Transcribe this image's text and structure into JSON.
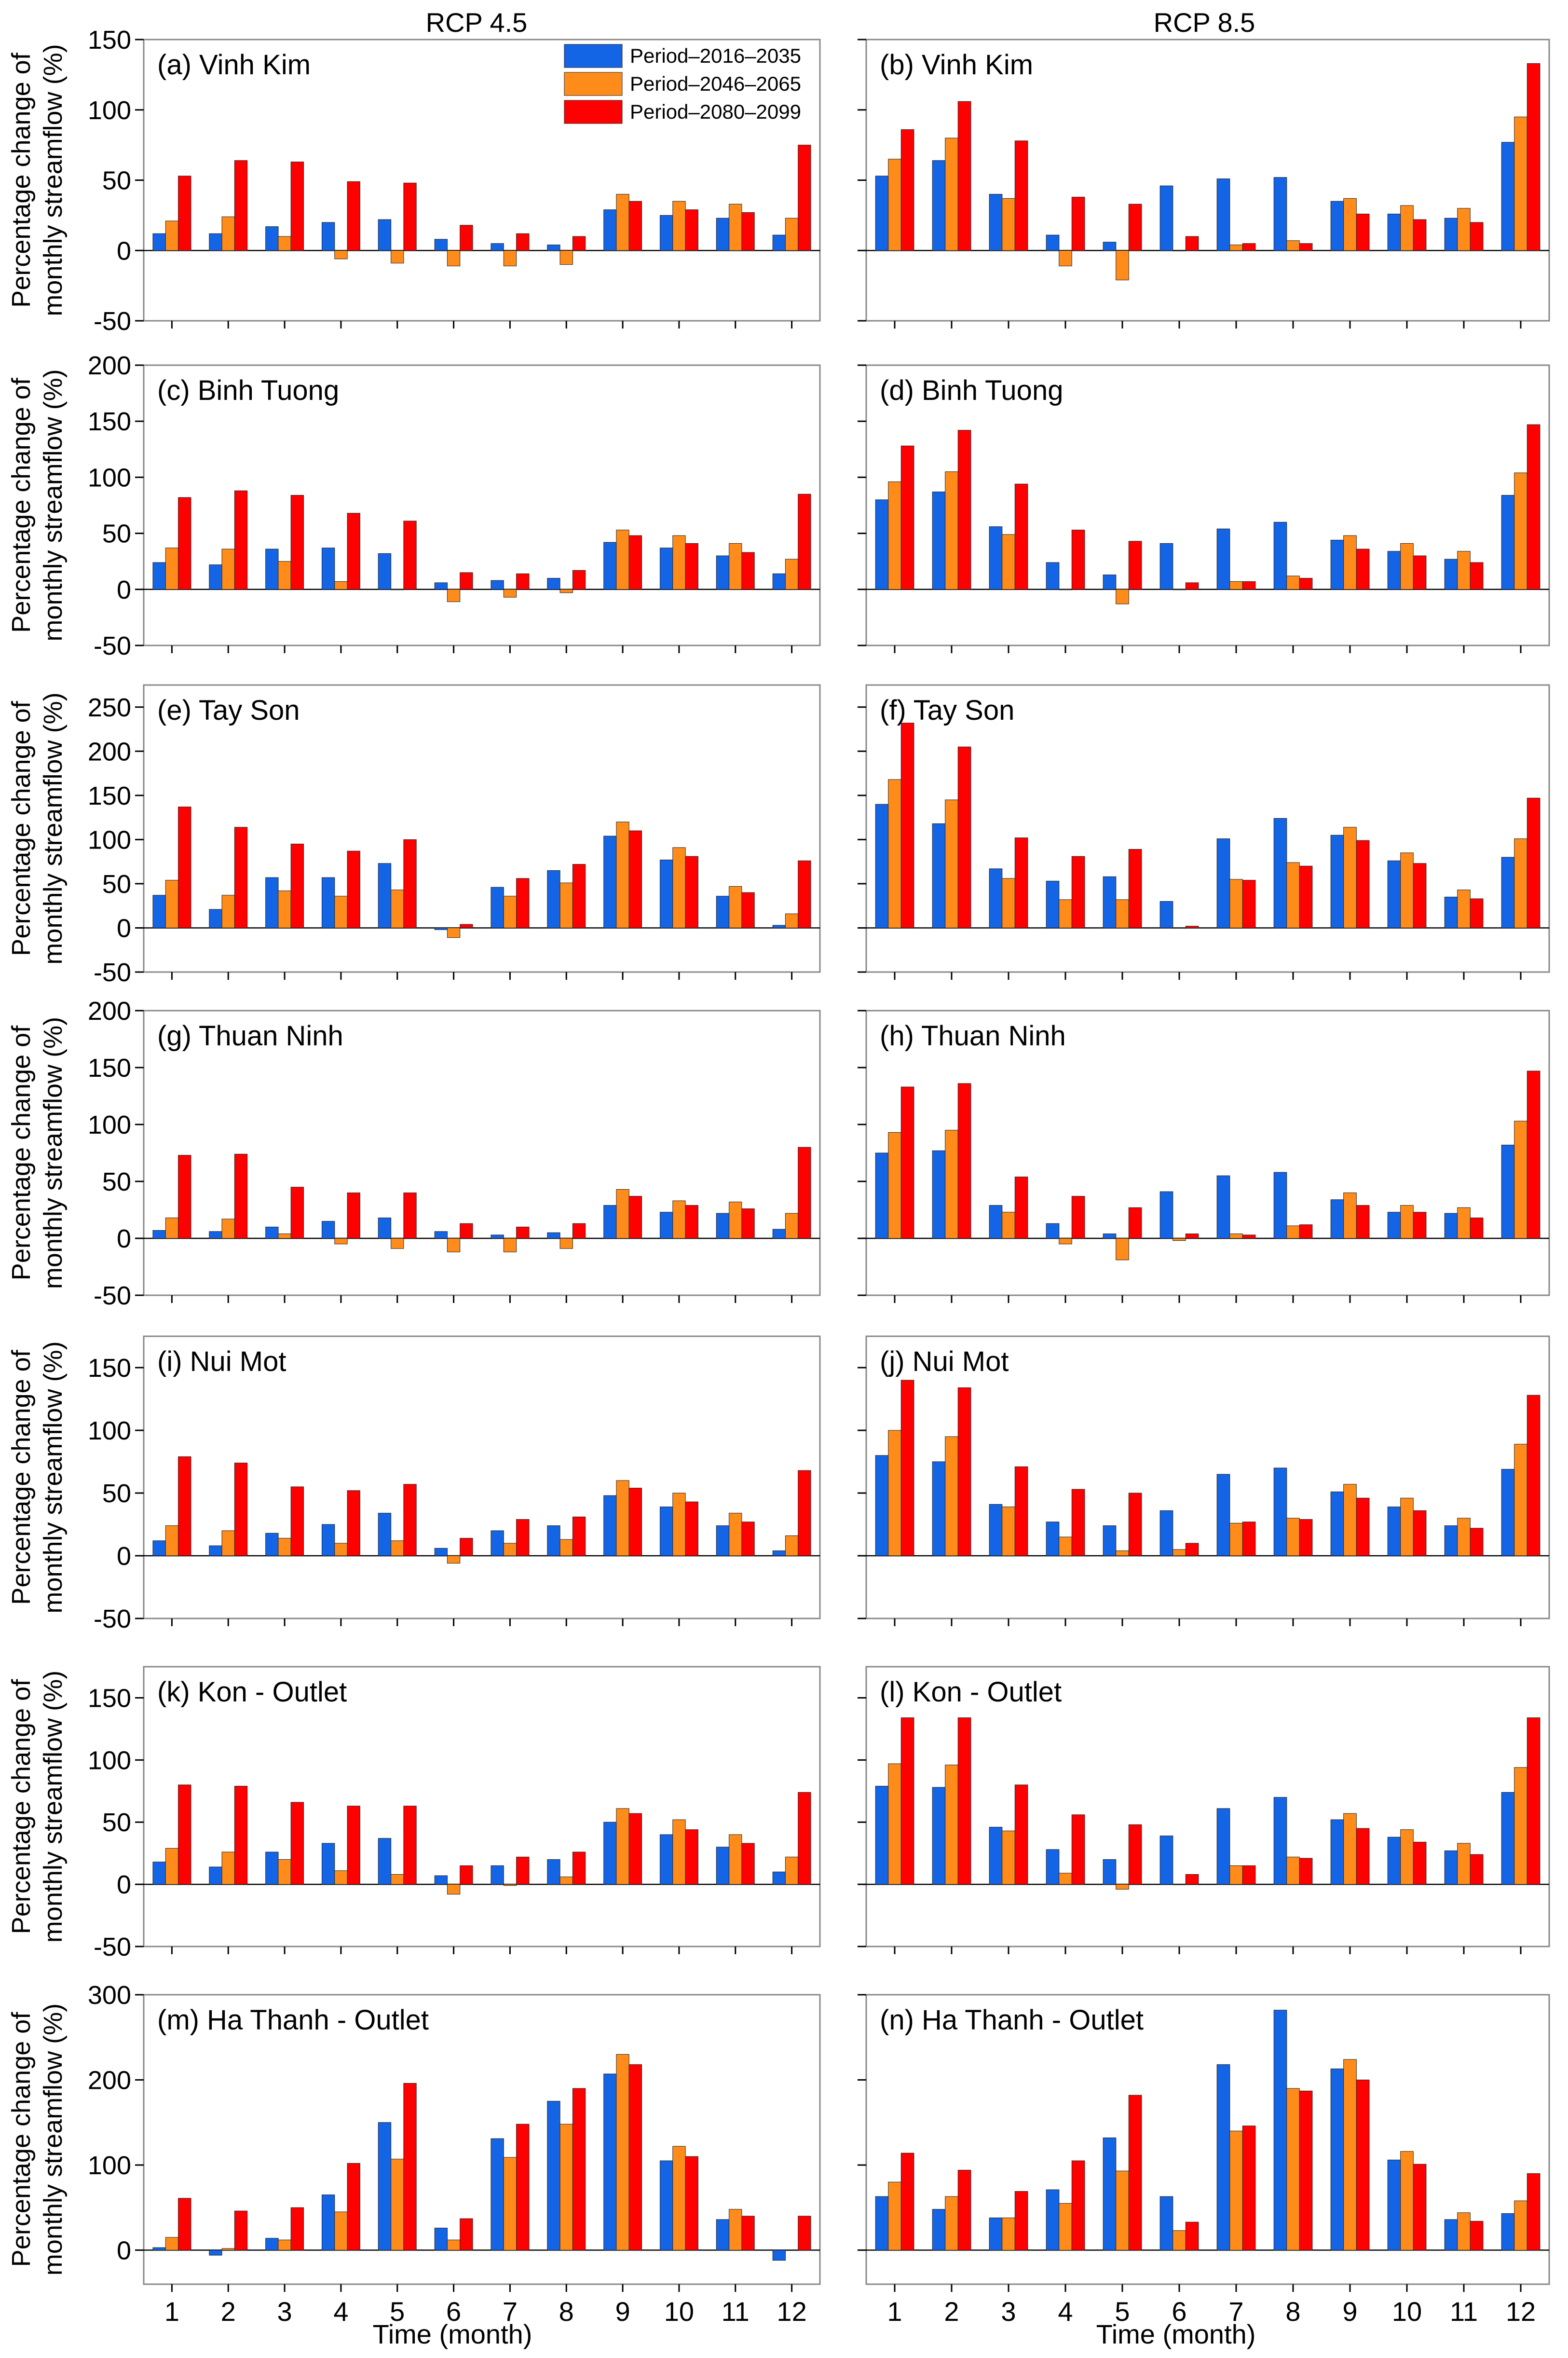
{
  "colors": {
    "p1": "#1464e6",
    "p2": "#ff8c1a",
    "p3": "#ff0000",
    "axis": "#000000",
    "frame": "#888888"
  },
  "column_titles": [
    "RCP 4.5",
    "RCP 8.5"
  ],
  "xlabel": "Time (month)",
  "ylabel_line1": "Percentage change of",
  "ylabel_line2": "monthly streamflow (%)",
  "legend": [
    "Period–2016–2035",
    "Period–2046–2065",
    "Period–2080–2099"
  ],
  "chart_data": [
    {
      "type": "bar",
      "title": "(a) Vinh Kim",
      "ylim": [
        -50,
        150
      ],
      "yticks": [
        -50,
        0,
        50,
        100,
        150
      ],
      "categories": [
        "1",
        "2",
        "3",
        "4",
        "5",
        "6",
        "7",
        "8",
        "9",
        "10",
        "11",
        "12"
      ],
      "series": [
        {
          "name": "Period–2016–2035",
          "values": [
            12,
            12,
            17,
            20,
            22,
            8,
            5,
            4,
            29,
            25,
            23,
            11
          ]
        },
        {
          "name": "Period–2046–2065",
          "values": [
            21,
            24,
            10,
            -6,
            -9,
            -11,
            -11,
            -10,
            40,
            35,
            33,
            23
          ]
        },
        {
          "name": "Period–2080–2099",
          "values": [
            53,
            64,
            63,
            49,
            48,
            18,
            12,
            10,
            35,
            29,
            27,
            75
          ]
        }
      ]
    },
    {
      "type": "bar",
      "title": "(b) Vinh Kim",
      "ylim": [
        -50,
        150
      ],
      "yticks": [
        -50,
        0,
        50,
        100,
        150
      ],
      "categories": [
        "1",
        "2",
        "3",
        "4",
        "5",
        "6",
        "7",
        "8",
        "9",
        "10",
        "11",
        "12"
      ],
      "series": [
        {
          "name": "Period–2016–2035",
          "values": [
            53,
            64,
            40,
            11,
            6,
            46,
            51,
            52,
            35,
            26,
            23,
            77
          ]
        },
        {
          "name": "Period–2046–2065",
          "values": [
            65,
            80,
            37,
            -11,
            -21,
            0,
            4,
            7,
            37,
            32,
            30,
            95
          ]
        },
        {
          "name": "Period–2080–2099",
          "values": [
            86,
            106,
            78,
            38,
            33,
            10,
            5,
            5,
            26,
            22,
            20,
            133
          ]
        }
      ]
    },
    {
      "type": "bar",
      "title": "(c) Binh Tuong",
      "ylim": [
        -50,
        200
      ],
      "yticks": [
        -50,
        0,
        50,
        100,
        150,
        200
      ],
      "categories": [
        "1",
        "2",
        "3",
        "4",
        "5",
        "6",
        "7",
        "8",
        "9",
        "10",
        "11",
        "12"
      ],
      "series": [
        {
          "name": "Period–2016–2035",
          "values": [
            24,
            22,
            36,
            37,
            32,
            6,
            8,
            10,
            42,
            37,
            30,
            14
          ]
        },
        {
          "name": "Period–2046–2065",
          "values": [
            37,
            36,
            25,
            7,
            0,
            -11,
            -7,
            -3,
            53,
            48,
            41,
            27
          ]
        },
        {
          "name": "Period–2080–2099",
          "values": [
            82,
            88,
            84,
            68,
            61,
            15,
            14,
            17,
            48,
            41,
            33,
            85
          ]
        }
      ]
    },
    {
      "type": "bar",
      "title": "(d) Binh Tuong",
      "ylim": [
        -50,
        200
      ],
      "yticks": [
        -50,
        0,
        50,
        100,
        150,
        200
      ],
      "categories": [
        "1",
        "2",
        "3",
        "4",
        "5",
        "6",
        "7",
        "8",
        "9",
        "10",
        "11",
        "12"
      ],
      "series": [
        {
          "name": "Period–2016–2035",
          "values": [
            80,
            87,
            56,
            24,
            13,
            41,
            54,
            60,
            44,
            34,
            27,
            84
          ]
        },
        {
          "name": "Period–2046–2065",
          "values": [
            96,
            105,
            49,
            0,
            -13,
            0,
            7,
            12,
            48,
            41,
            34,
            104
          ]
        },
        {
          "name": "Period–2080–2099",
          "values": [
            128,
            142,
            94,
            53,
            43,
            6,
            7,
            10,
            36,
            30,
            24,
            147
          ]
        }
      ]
    },
    {
      "type": "bar",
      "title": "(e) Tay Son",
      "ylim": [
        -50,
        275
      ],
      "yticks": [
        -50,
        0,
        50,
        100,
        150,
        200,
        250
      ],
      "categories": [
        "1",
        "2",
        "3",
        "4",
        "5",
        "6",
        "7",
        "8",
        "9",
        "10",
        "11",
        "12"
      ],
      "series": [
        {
          "name": "Period–2016–2035",
          "values": [
            37,
            21,
            57,
            57,
            73,
            -2,
            46,
            65,
            104,
            77,
            36,
            3
          ]
        },
        {
          "name": "Period–2046–2065",
          "values": [
            54,
            37,
            42,
            36,
            43,
            -11,
            36,
            51,
            120,
            91,
            47,
            16
          ]
        },
        {
          "name": "Period–2080–2099",
          "values": [
            137,
            114,
            95,
            87,
            100,
            4,
            56,
            72,
            110,
            81,
            40,
            76
          ]
        }
      ]
    },
    {
      "type": "bar",
      "title": "(f) Tay Son",
      "ylim": [
        -50,
        275
      ],
      "yticks": [
        -50,
        0,
        50,
        100,
        150,
        200,
        250
      ],
      "categories": [
        "1",
        "2",
        "3",
        "4",
        "5",
        "6",
        "7",
        "8",
        "9",
        "10",
        "11",
        "12"
      ],
      "series": [
        {
          "name": "Period–2016–2035",
          "values": [
            140,
            118,
            67,
            53,
            58,
            30,
            101,
            124,
            105,
            76,
            35,
            80
          ]
        },
        {
          "name": "Period–2046–2065",
          "values": [
            168,
            145,
            56,
            32,
            32,
            0,
            55,
            74,
            114,
            85,
            43,
            101
          ]
        },
        {
          "name": "Period–2080–2099",
          "values": [
            232,
            205,
            102,
            81,
            89,
            2,
            54,
            70,
            99,
            73,
            33,
            147
          ]
        }
      ]
    },
    {
      "type": "bar",
      "title": "(g) Thuan Ninh",
      "ylim": [
        -50,
        200
      ],
      "yticks": [
        -50,
        0,
        50,
        100,
        150,
        200
      ],
      "categories": [
        "1",
        "2",
        "3",
        "4",
        "5",
        "6",
        "7",
        "8",
        "9",
        "10",
        "11",
        "12"
      ],
      "series": [
        {
          "name": "Period–2016–2035",
          "values": [
            7,
            6,
            10,
            15,
            18,
            6,
            3,
            5,
            29,
            23,
            22,
            8
          ]
        },
        {
          "name": "Period–2046–2065",
          "values": [
            18,
            17,
            4,
            -5,
            -9,
            -12,
            -12,
            -9,
            43,
            33,
            32,
            22
          ]
        },
        {
          "name": "Period–2080–2099",
          "values": [
            73,
            74,
            45,
            40,
            40,
            13,
            10,
            13,
            37,
            29,
            26,
            80
          ]
        }
      ]
    },
    {
      "type": "bar",
      "title": "(h) Thuan Ninh",
      "ylim": [
        -50,
        200
      ],
      "yticks": [
        -50,
        0,
        50,
        100,
        150,
        200
      ],
      "categories": [
        "1",
        "2",
        "3",
        "4",
        "5",
        "6",
        "7",
        "8",
        "9",
        "10",
        "11",
        "12"
      ],
      "series": [
        {
          "name": "Period–2016–2035",
          "values": [
            75,
            77,
            29,
            13,
            4,
            41,
            55,
            58,
            34,
            23,
            22,
            82
          ]
        },
        {
          "name": "Period–2046–2065",
          "values": [
            93,
            95,
            23,
            -5,
            -19,
            -2,
            4,
            11,
            40,
            29,
            27,
            103
          ]
        },
        {
          "name": "Period–2080–2099",
          "values": [
            133,
            136,
            54,
            37,
            27,
            4,
            3,
            12,
            29,
            23,
            18,
            147
          ]
        }
      ]
    },
    {
      "type": "bar",
      "title": "(i) Nui Mot",
      "ylim": [
        -50,
        175
      ],
      "yticks": [
        -50,
        0,
        50,
        100,
        150
      ],
      "categories": [
        "1",
        "2",
        "3",
        "4",
        "5",
        "6",
        "7",
        "8",
        "9",
        "10",
        "11",
        "12"
      ],
      "series": [
        {
          "name": "Period–2016–2035",
          "values": [
            12,
            8,
            18,
            25,
            34,
            6,
            20,
            24,
            48,
            39,
            24,
            4
          ]
        },
        {
          "name": "Period–2046–2065",
          "values": [
            24,
            20,
            14,
            10,
            12,
            -6,
            10,
            13,
            60,
            50,
            34,
            16
          ]
        },
        {
          "name": "Period–2080–2099",
          "values": [
            79,
            74,
            55,
            52,
            57,
            14,
            29,
            31,
            54,
            43,
            27,
            68
          ]
        }
      ]
    },
    {
      "type": "bar",
      "title": "(j) Nui Mot",
      "ylim": [
        -50,
        175
      ],
      "yticks": [
        -50,
        0,
        50,
        100,
        150
      ],
      "categories": [
        "1",
        "2",
        "3",
        "4",
        "5",
        "6",
        "7",
        "8",
        "9",
        "10",
        "11",
        "12"
      ],
      "series": [
        {
          "name": "Period–2016–2035",
          "values": [
            80,
            75,
            41,
            27,
            24,
            36,
            65,
            70,
            51,
            39,
            24,
            69
          ]
        },
        {
          "name": "Period–2046–2065",
          "values": [
            100,
            95,
            39,
            15,
            4,
            5,
            26,
            30,
            57,
            46,
            30,
            89
          ]
        },
        {
          "name": "Period–2080–2099",
          "values": [
            140,
            134,
            71,
            53,
            50,
            10,
            27,
            29,
            46,
            36,
            22,
            128
          ]
        }
      ]
    },
    {
      "type": "bar",
      "title": "(k) Kon - Outlet",
      "ylim": [
        -50,
        175
      ],
      "yticks": [
        -50,
        0,
        50,
        100,
        150
      ],
      "categories": [
        "1",
        "2",
        "3",
        "4",
        "5",
        "6",
        "7",
        "8",
        "9",
        "10",
        "11",
        "12"
      ],
      "series": [
        {
          "name": "Period–2016–2035",
          "values": [
            18,
            14,
            26,
            33,
            37,
            7,
            15,
            20,
            50,
            40,
            30,
            10
          ]
        },
        {
          "name": "Period–2046–2065",
          "values": [
            29,
            26,
            20,
            11,
            8,
            -8,
            -1,
            6,
            61,
            52,
            40,
            22
          ]
        },
        {
          "name": "Period–2080–2099",
          "values": [
            80,
            79,
            66,
            63,
            63,
            15,
            22,
            26,
            57,
            44,
            33,
            74
          ]
        }
      ]
    },
    {
      "type": "bar",
      "title": "(l) Kon - Outlet",
      "ylim": [
        -50,
        175
      ],
      "yticks": [
        -50,
        0,
        50,
        100,
        150
      ],
      "categories": [
        "1",
        "2",
        "3",
        "4",
        "5",
        "6",
        "7",
        "8",
        "9",
        "10",
        "11",
        "12"
      ],
      "series": [
        {
          "name": "Period–2016–2035",
          "values": [
            79,
            78,
            46,
            28,
            20,
            39,
            61,
            70,
            52,
            38,
            27,
            74
          ]
        },
        {
          "name": "Period–2046–2065",
          "values": [
            97,
            96,
            43,
            9,
            -4,
            0,
            15,
            22,
            57,
            44,
            33,
            94
          ]
        },
        {
          "name": "Period–2080–2099",
          "values": [
            134,
            134,
            80,
            56,
            48,
            8,
            15,
            21,
            45,
            34,
            24,
            134
          ]
        }
      ]
    },
    {
      "type": "bar",
      "title": "(m) Ha Thanh - Outlet",
      "ylim": [
        -40,
        300
      ],
      "yticks": [
        0,
        100,
        200,
        300
      ],
      "categories": [
        "1",
        "2",
        "3",
        "4",
        "5",
        "6",
        "7",
        "8",
        "9",
        "10",
        "11",
        "12"
      ],
      "series": [
        {
          "name": "Period–2016–2035",
          "values": [
            3,
            -6,
            14,
            65,
            150,
            26,
            131,
            175,
            207,
            105,
            36,
            -12
          ]
        },
        {
          "name": "Period–2046–2065",
          "values": [
            15,
            2,
            12,
            45,
            107,
            12,
            109,
            148,
            230,
            122,
            48,
            0
          ]
        },
        {
          "name": "Period–2080–2099",
          "values": [
            61,
            46,
            50,
            102,
            196,
            37,
            148,
            190,
            218,
            110,
            40,
            40
          ]
        }
      ]
    },
    {
      "type": "bar",
      "title": "(n) Ha Thanh - Outlet",
      "ylim": [
        -40,
        300
      ],
      "yticks": [
        0,
        100,
        200,
        300
      ],
      "categories": [
        "1",
        "2",
        "3",
        "4",
        "5",
        "6",
        "7",
        "8",
        "9",
        "10",
        "11",
        "12"
      ],
      "series": [
        {
          "name": "Period–2016–2035",
          "values": [
            63,
            48,
            38,
            71,
            132,
            63,
            218,
            282,
            213,
            106,
            36,
            43
          ]
        },
        {
          "name": "Period–2046–2065",
          "values": [
            80,
            63,
            38,
            55,
            93,
            23,
            140,
            190,
            224,
            116,
            44,
            58
          ]
        },
        {
          "name": "Period–2080–2099",
          "values": [
            114,
            94,
            69,
            105,
            182,
            33,
            146,
            187,
            200,
            101,
            34,
            90
          ]
        }
      ]
    }
  ]
}
